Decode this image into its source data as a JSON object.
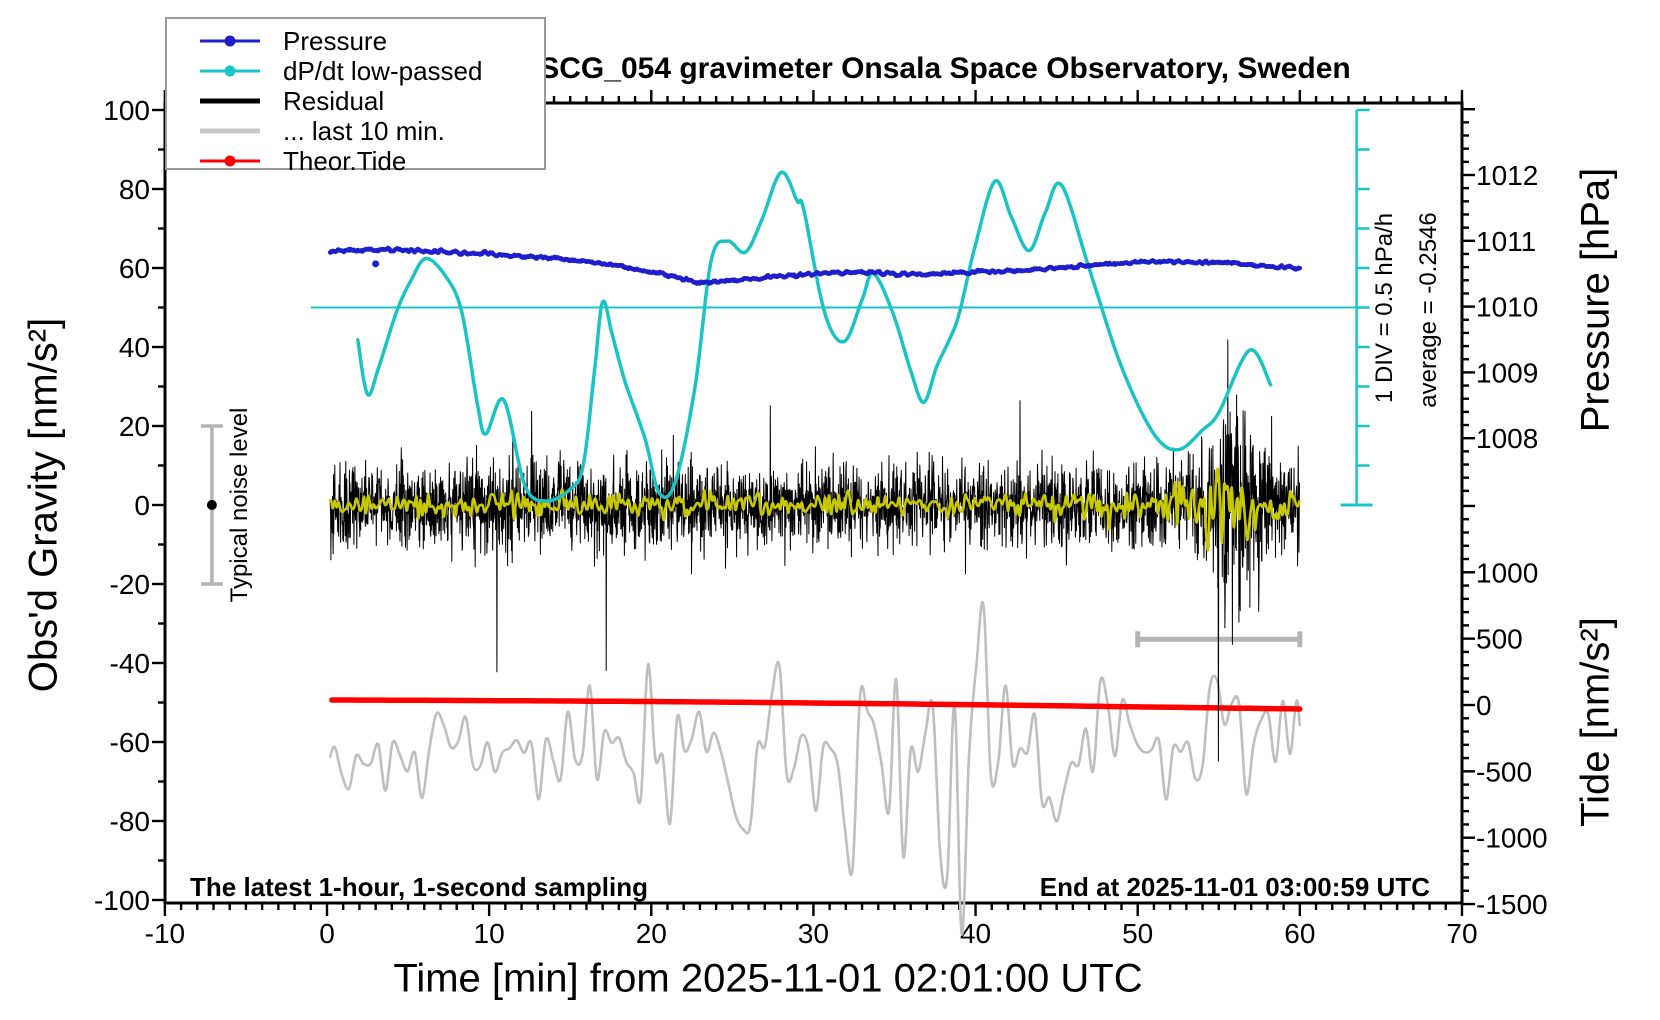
{
  "title": "SCG_054 gravimeter Onsala Space Observatory, Sweden",
  "legend": {
    "items": [
      {
        "label": "Pressure",
        "color": "#1e1ecd",
        "line_width": 3,
        "marker": true
      },
      {
        "label": "dP/dt low-passed",
        "color": "#1bc4c4",
        "line_width": 3,
        "marker": true
      },
      {
        "label": "Residual",
        "color": "#000000",
        "line_width": 5,
        "marker": false
      },
      {
        "label": "... last 10 min.",
        "color": "#c8c8c8",
        "line_width": 5,
        "marker": false
      },
      {
        "label": "Theor.Tide",
        "color": "#ff0000",
        "line_width": 3,
        "marker": true
      }
    ]
  },
  "annotations": {
    "sampling": "The latest 1-hour, 1-second sampling",
    "end": "End at 2025-11-01 03:00:59 UTC",
    "noise_level": "Typical noise level",
    "div_scale": "1 DIV = 0.5 hPa/h",
    "average": "average = -0.2546"
  },
  "axes": {
    "x": {
      "label": "Time [min] from 2025-11-01 02:01:00 UTC",
      "range": [
        -10,
        70
      ],
      "major_ticks": [
        -10,
        0,
        10,
        20,
        30,
        40,
        50,
        60,
        70
      ],
      "minor_step": 1
    },
    "y_gravity": {
      "label": "Obs'd Gravity [nm/s²]",
      "range": [
        -100,
        100
      ],
      "major_ticks": [
        100,
        80,
        60,
        40,
        20,
        0,
        -20,
        -40,
        -60,
        -80,
        -100
      ],
      "minor_step": 10
    },
    "y_pressure": {
      "label": "Pressure [hPa]",
      "major_ticks": [
        1012,
        1011,
        1010,
        1009,
        1008
      ],
      "minor_step": 0.2,
      "visible_range": [
        1007.0,
        1013.1
      ]
    },
    "y_tide": {
      "label": "Tide [nm/s²]",
      "major_ticks": [
        1000,
        500,
        0,
        -500,
        -1000,
        -1500
      ],
      "minor_step": 100,
      "visible_range": [
        -1500,
        1500
      ]
    }
  },
  "chart_data": {
    "type": "line",
    "title": "SCG_054 gravimeter Onsala Space Observatory, Sweden",
    "xlabel": "Time [min] from 2025-11-01 02:01:00 UTC",
    "x_range": [
      -10,
      70
    ],
    "data_span_min": [
      0.2,
      60
    ],
    "grid": false,
    "legend_position": "top-left",
    "series": [
      {
        "name": "Pressure",
        "color": "#1e1ecd",
        "axis": "pressure_hPa",
        "points": [
          [
            0.2,
            1010.84
          ],
          [
            2,
            1010.85
          ],
          [
            4,
            1010.86
          ],
          [
            6,
            1010.85
          ],
          [
            8,
            1010.82
          ],
          [
            10,
            1010.8
          ],
          [
            12,
            1010.77
          ],
          [
            14,
            1010.73
          ],
          [
            16,
            1010.69
          ],
          [
            18,
            1010.62
          ],
          [
            20,
            1010.52
          ],
          [
            22,
            1010.42
          ],
          [
            23,
            1010.37
          ],
          [
            25,
            1010.39
          ],
          [
            27,
            1010.44
          ],
          [
            29,
            1010.48
          ],
          [
            31,
            1010.51
          ],
          [
            33,
            1010.52
          ],
          [
            35,
            1010.51
          ],
          [
            37,
            1010.49
          ],
          [
            39,
            1010.51
          ],
          [
            41,
            1010.53
          ],
          [
            43,
            1010.55
          ],
          [
            45,
            1010.59
          ],
          [
            47,
            1010.63
          ],
          [
            49,
            1010.66
          ],
          [
            51,
            1010.68
          ],
          [
            53,
            1010.68
          ],
          [
            55,
            1010.66
          ],
          [
            57,
            1010.63
          ],
          [
            59,
            1010.6
          ],
          [
            60,
            1010.58
          ]
        ],
        "outlier_point": [
          3.0,
          1010.65
        ]
      },
      {
        "name": "dP/dt low-passed",
        "color": "#1bc4c4",
        "axis": "dPdt_hPa_per_h",
        "zero_line_at_gravity": 50,
        "scale_note": "1 DIV = 0.5 hPa/h = 10 nm/s² of gravity axis",
        "average_hPa_per_h": -0.2546,
        "points": [
          [
            1.9,
            -0.41
          ],
          [
            2.5,
            -1.1
          ],
          [
            3.2,
            -0.75
          ],
          [
            4.3,
            -0.05
          ],
          [
            5.2,
            0.35
          ],
          [
            6.1,
            0.62
          ],
          [
            7.3,
            0.4
          ],
          [
            8.3,
            -0.05
          ],
          [
            9.3,
            -1.25
          ],
          [
            9.8,
            -1.6
          ],
          [
            10.9,
            -1.17
          ],
          [
            12.2,
            -2.25
          ],
          [
            13.5,
            -2.45
          ],
          [
            15.0,
            -2.3
          ],
          [
            15.8,
            -2.0
          ],
          [
            16.5,
            -0.8
          ],
          [
            17.0,
            0.07
          ],
          [
            17.6,
            -0.35
          ],
          [
            18.4,
            -0.95
          ],
          [
            19.6,
            -1.65
          ],
          [
            20.5,
            -2.35
          ],
          [
            21.5,
            -2.2
          ],
          [
            22.7,
            -1.0
          ],
          [
            23.7,
            0.6
          ],
          [
            24.7,
            0.84
          ],
          [
            25.8,
            0.7
          ],
          [
            26.8,
            1.1
          ],
          [
            28.0,
            1.71
          ],
          [
            29.0,
            1.35
          ],
          [
            29.4,
            1.24
          ],
          [
            30.7,
            -0.07
          ],
          [
            31.9,
            -0.43
          ],
          [
            33.0,
            0.1
          ],
          [
            33.7,
            0.43
          ],
          [
            34.9,
            -0.07
          ],
          [
            36.0,
            -0.8
          ],
          [
            36.8,
            -1.2
          ],
          [
            37.6,
            -0.75
          ],
          [
            38.4,
            -0.4
          ],
          [
            39.0,
            -0.07
          ],
          [
            40.0,
            0.8
          ],
          [
            41.2,
            1.6
          ],
          [
            42.2,
            1.15
          ],
          [
            43.3,
            0.72
          ],
          [
            44.3,
            1.2
          ],
          [
            45.3,
            1.55
          ],
          [
            47.0,
            0.5
          ],
          [
            49.0,
            -0.75
          ],
          [
            51.0,
            -1.6
          ],
          [
            52.5,
            -1.8
          ],
          [
            54.0,
            -1.55
          ],
          [
            55.0,
            -1.33
          ],
          [
            56.9,
            -0.54
          ],
          [
            58.2,
            -0.98
          ]
        ]
      },
      {
        "name": "Residual",
        "color": "#000000",
        "axis": "gravity_nm_s2",
        "mean": 0,
        "sigma_envelope": [
          [
            0,
            5
          ],
          [
            6,
            5.5
          ],
          [
            9,
            6.5
          ],
          [
            11,
            6.5
          ],
          [
            13,
            5.5
          ],
          [
            20,
            5.8
          ],
          [
            25,
            5
          ],
          [
            30,
            5.2
          ],
          [
            35,
            5
          ],
          [
            40,
            5
          ],
          [
            45,
            5
          ],
          [
            50,
            5.5
          ],
          [
            53,
            6
          ],
          [
            54.5,
            8
          ],
          [
            55.5,
            14
          ],
          [
            56.2,
            15
          ],
          [
            57,
            11
          ],
          [
            57.8,
            7
          ],
          [
            58.5,
            6
          ],
          [
            60,
            6
          ]
        ],
        "burst_note": "large spike burst 54.5-57.5 min reaching about +42/-45"
      },
      {
        "name": "Residual low-passed (yellow, unlabeled)",
        "color": "#c8c800",
        "axis": "gravity_nm_s2",
        "amplitude_envelope": [
          [
            0,
            1.5
          ],
          [
            10,
            1.8
          ],
          [
            15,
            2.0
          ],
          [
            20,
            2.2
          ],
          [
            25,
            1.8
          ],
          [
            30,
            2.0
          ],
          [
            35,
            1.8
          ],
          [
            40,
            1.8
          ],
          [
            45,
            2.0
          ],
          [
            50,
            2.6
          ],
          [
            52,
            3.5
          ],
          [
            54,
            6.0
          ],
          [
            55.5,
            6.5
          ],
          [
            56.5,
            5.0
          ],
          [
            57.5,
            3.5
          ],
          [
            58.5,
            2.5
          ],
          [
            60,
            2.2
          ]
        ]
      },
      {
        "name": "... last 10 min.",
        "color": "#bfbfbf",
        "axis": "tide_nm_s2",
        "mean": -350,
        "amplitude_envelope": [
          [
            0,
            260
          ],
          [
            5,
            300
          ],
          [
            10,
            360
          ],
          [
            15,
            420
          ],
          [
            20,
            480
          ],
          [
            25,
            560
          ],
          [
            28,
            650
          ],
          [
            31,
            800
          ],
          [
            33,
            1000
          ],
          [
            35,
            1150
          ],
          [
            37,
            1150
          ],
          [
            39,
            1000
          ],
          [
            41,
            750
          ],
          [
            43,
            620
          ],
          [
            45,
            580
          ],
          [
            48,
            560
          ],
          [
            50,
            540
          ],
          [
            53,
            580
          ],
          [
            55,
            620
          ],
          [
            57,
            560
          ],
          [
            60,
            480
          ]
        ],
        "extremes_note": "peaks near +900, dips near -1550 between 33 and 39 min"
      },
      {
        "name": "Theor.Tide",
        "color": "#ff0000",
        "axis": "tide_nm_s2",
        "points": [
          [
            0.3,
            38
          ],
          [
            10,
            33
          ],
          [
            20,
            26
          ],
          [
            30,
            15
          ],
          [
            40,
            2
          ],
          [
            50,
            -14
          ],
          [
            60,
            -30
          ]
        ]
      }
    ],
    "markers": {
      "noise_bar": {
        "x_min": -7.1,
        "gravity_range": [
          -20,
          20
        ],
        "dot_at_gravity": 0,
        "color": "#b4b4b4"
      },
      "last10_bracket": {
        "x_min_range": [
          50,
          60
        ],
        "gravity_y": -34,
        "color": "#b4b4b4"
      },
      "dpdt_ruler": {
        "x_min": 63.5,
        "gravity_range": [
          0,
          100
        ],
        "div_gravity": 10,
        "color": "#1bc4c4"
      },
      "dpdt_zero_line": {
        "gravity_y": 50,
        "x_min_range": [
          -1.0,
          63.5
        ],
        "color": "#1bc4c4"
      }
    }
  }
}
